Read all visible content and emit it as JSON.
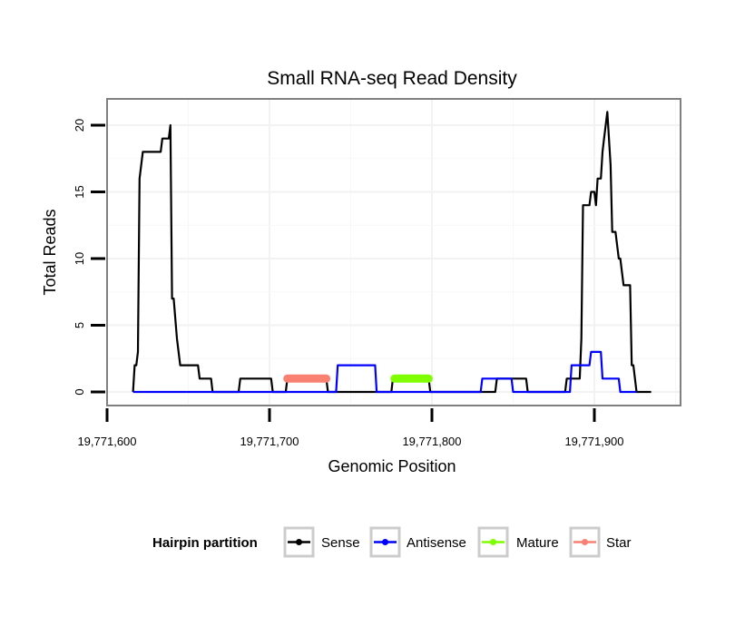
{
  "chart_data": {
    "type": "line",
    "title": "Small RNA-seq Read Density",
    "xlabel": "Genomic Position",
    "ylabel": "Total Reads",
    "xlim": [
      19771600,
      19771952
    ],
    "ylim": [
      -0.9,
      21.6
    ],
    "x_ticks": [
      19771600,
      19771700,
      19771800,
      19771900
    ],
    "x_tick_labels": [
      "19,771,600",
      "19,771,700",
      "19,771,800",
      "19,771,900"
    ],
    "y_ticks": [
      0,
      5,
      10,
      15,
      20
    ],
    "y_tick_labels": [
      "0",
      "5",
      "10",
      "15",
      "20"
    ],
    "grid": true,
    "legend": {
      "title": "Hairpin partition",
      "placement": "bottom",
      "entries": [
        {
          "name": "Sense",
          "color": "#000000"
        },
        {
          "name": "Antisense",
          "color": "#0000ff"
        },
        {
          "name": "Mature",
          "color": "#7fff00"
        },
        {
          "name": "Star",
          "color": "#fa8072"
        }
      ]
    },
    "series": [
      {
        "name": "Sense",
        "color": "#000000",
        "points": [
          [
            19771616,
            0
          ],
          [
            19771617,
            2
          ],
          [
            19771618,
            2
          ],
          [
            19771619,
            3
          ],
          [
            19771620,
            16
          ],
          [
            19771621,
            17
          ],
          [
            19771622,
            18
          ],
          [
            19771633,
            18
          ],
          [
            19771634,
            19
          ],
          [
            19771638,
            19
          ],
          [
            19771639,
            20
          ],
          [
            19771640,
            7
          ],
          [
            19771641,
            7
          ],
          [
            19771643,
            4
          ],
          [
            19771645,
            2
          ],
          [
            19771656,
            2
          ],
          [
            19771657,
            1
          ],
          [
            19771664,
            1
          ],
          [
            19771665,
            0
          ],
          [
            19771681,
            0
          ],
          [
            19771682,
            1
          ],
          [
            19771701,
            1
          ],
          [
            19771702,
            0
          ],
          [
            19771710,
            0
          ],
          [
            19771711,
            1
          ],
          [
            19771735,
            1
          ],
          [
            19771736,
            0
          ],
          [
            19771775,
            0
          ],
          [
            19771776,
            1
          ],
          [
            19771798,
            1
          ],
          [
            19771799,
            0
          ],
          [
            19771839,
            0
          ],
          [
            19771840,
            1
          ],
          [
            19771858,
            1
          ],
          [
            19771859,
            0
          ],
          [
            19771882,
            0
          ],
          [
            19771883,
            1
          ],
          [
            19771891,
            1
          ],
          [
            19771892,
            4
          ],
          [
            19771893,
            14
          ],
          [
            19771897,
            14
          ],
          [
            19771898,
            15
          ],
          [
            19771900,
            15
          ],
          [
            19771901,
            14
          ],
          [
            19771902,
            16
          ],
          [
            19771904,
            16
          ],
          [
            19771905,
            18
          ],
          [
            19771906,
            19
          ],
          [
            19771908,
            21
          ],
          [
            19771910,
            17
          ],
          [
            19771911,
            12
          ],
          [
            19771913,
            12
          ],
          [
            19771914,
            11
          ],
          [
            19771915,
            10
          ],
          [
            19771916,
            10
          ],
          [
            19771918,
            8
          ],
          [
            19771922,
            8
          ],
          [
            19771923,
            2
          ],
          [
            19771924,
            2
          ],
          [
            19771926,
            0
          ],
          [
            19771935,
            0
          ]
        ]
      },
      {
        "name": "Antisense",
        "color": "#0000ff",
        "points": [
          [
            19771616,
            0
          ],
          [
            19771741,
            0
          ],
          [
            19771742,
            2
          ],
          [
            19771765,
            2
          ],
          [
            19771766,
            0
          ],
          [
            19771830,
            0
          ],
          [
            19771831,
            1
          ],
          [
            19771849,
            1
          ],
          [
            19771850,
            0
          ],
          [
            19771885,
            0
          ],
          [
            19771886,
            2
          ],
          [
            19771897,
            2
          ],
          [
            19771898,
            3
          ],
          [
            19771904,
            3
          ],
          [
            19771905,
            1
          ],
          [
            19771915,
            1
          ],
          [
            19771916,
            0
          ],
          [
            19771926,
            0
          ]
        ]
      },
      {
        "name": "Mature",
        "color": "#7fff00",
        "points": [
          [
            19771777,
            1
          ],
          [
            19771798,
            1
          ]
        ]
      },
      {
        "name": "Star",
        "color": "#fa8072",
        "points": [
          [
            19771711,
            1
          ],
          [
            19771735,
            1
          ]
        ]
      }
    ]
  }
}
